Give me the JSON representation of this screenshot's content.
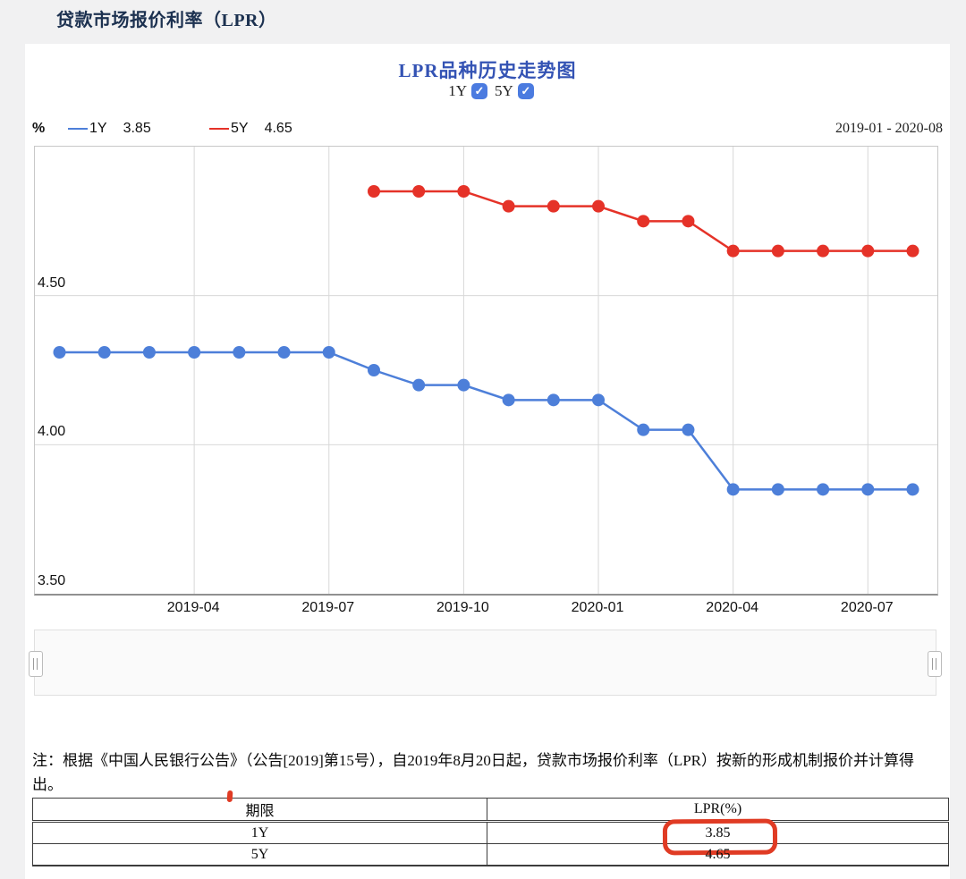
{
  "page": {
    "title": "贷款市场报价利率（LPR）"
  },
  "chart": {
    "title": "LPR品种历史走势图",
    "unit_label": "%",
    "date_range": "2019-01 - 2020-08",
    "toggles": [
      {
        "label": "1Y",
        "checked": true
      },
      {
        "label": "5Y",
        "checked": true
      }
    ],
    "legend": [
      {
        "label": "1Y",
        "value": "3.85",
        "color": "#4d7fd9"
      },
      {
        "label": "5Y",
        "value": "4.65",
        "color": "#e53228"
      }
    ],
    "colors": {
      "title_blue": "#3453b4",
      "checkbox_blue": "#4b7be0",
      "grid": "#d8d8d8",
      "annotation_red": "#e03b24"
    }
  },
  "chart_data": {
    "type": "line",
    "title": "LPR品种历史走势图",
    "xlabel": "",
    "ylabel": "%",
    "x": [
      "2019-01",
      "2019-02",
      "2019-03",
      "2019-04",
      "2019-05",
      "2019-06",
      "2019-07",
      "2019-08",
      "2019-09",
      "2019-10",
      "2019-11",
      "2019-12",
      "2020-01",
      "2020-02",
      "2020-03",
      "2020-04",
      "2020-05",
      "2020-06",
      "2020-07",
      "2020-08"
    ],
    "series": [
      {
        "name": "1Y",
        "color": "#4d7fd9",
        "values": [
          4.31,
          4.31,
          4.31,
          4.31,
          4.31,
          4.31,
          4.31,
          4.25,
          4.2,
          4.2,
          4.15,
          4.15,
          4.15,
          4.05,
          4.05,
          3.85,
          3.85,
          3.85,
          3.85,
          3.85
        ]
      },
      {
        "name": "5Y",
        "color": "#e53228",
        "values": [
          null,
          null,
          null,
          null,
          null,
          null,
          null,
          4.85,
          4.85,
          4.85,
          4.8,
          4.8,
          4.8,
          4.75,
          4.75,
          4.65,
          4.65,
          4.65,
          4.65,
          4.65
        ]
      }
    ],
    "ylim": [
      3.5,
      5.0
    ],
    "yticks": [
      {
        "v": 4.5,
        "label": "4.50"
      },
      {
        "v": 4.0,
        "label": "4.00"
      },
      {
        "v": 3.5,
        "label": "3.50"
      }
    ],
    "xticks": [
      "2019-04",
      "2019-07",
      "2019-10",
      "2020-01",
      "2020-04",
      "2020-07"
    ],
    "grid": true,
    "legend_position": "top-left"
  },
  "note": {
    "text": "注：根据《中国人民银行公告》（公告[2019]第15号），自2019年8月20日起，贷款市场报价利率（LPR）按新的形成机制报价并计算得出。"
  },
  "table": {
    "headers": [
      "期限",
      "LPR(%)"
    ],
    "rows": [
      [
        "1Y",
        "3.85"
      ],
      [
        "5Y",
        "4.65"
      ]
    ]
  }
}
